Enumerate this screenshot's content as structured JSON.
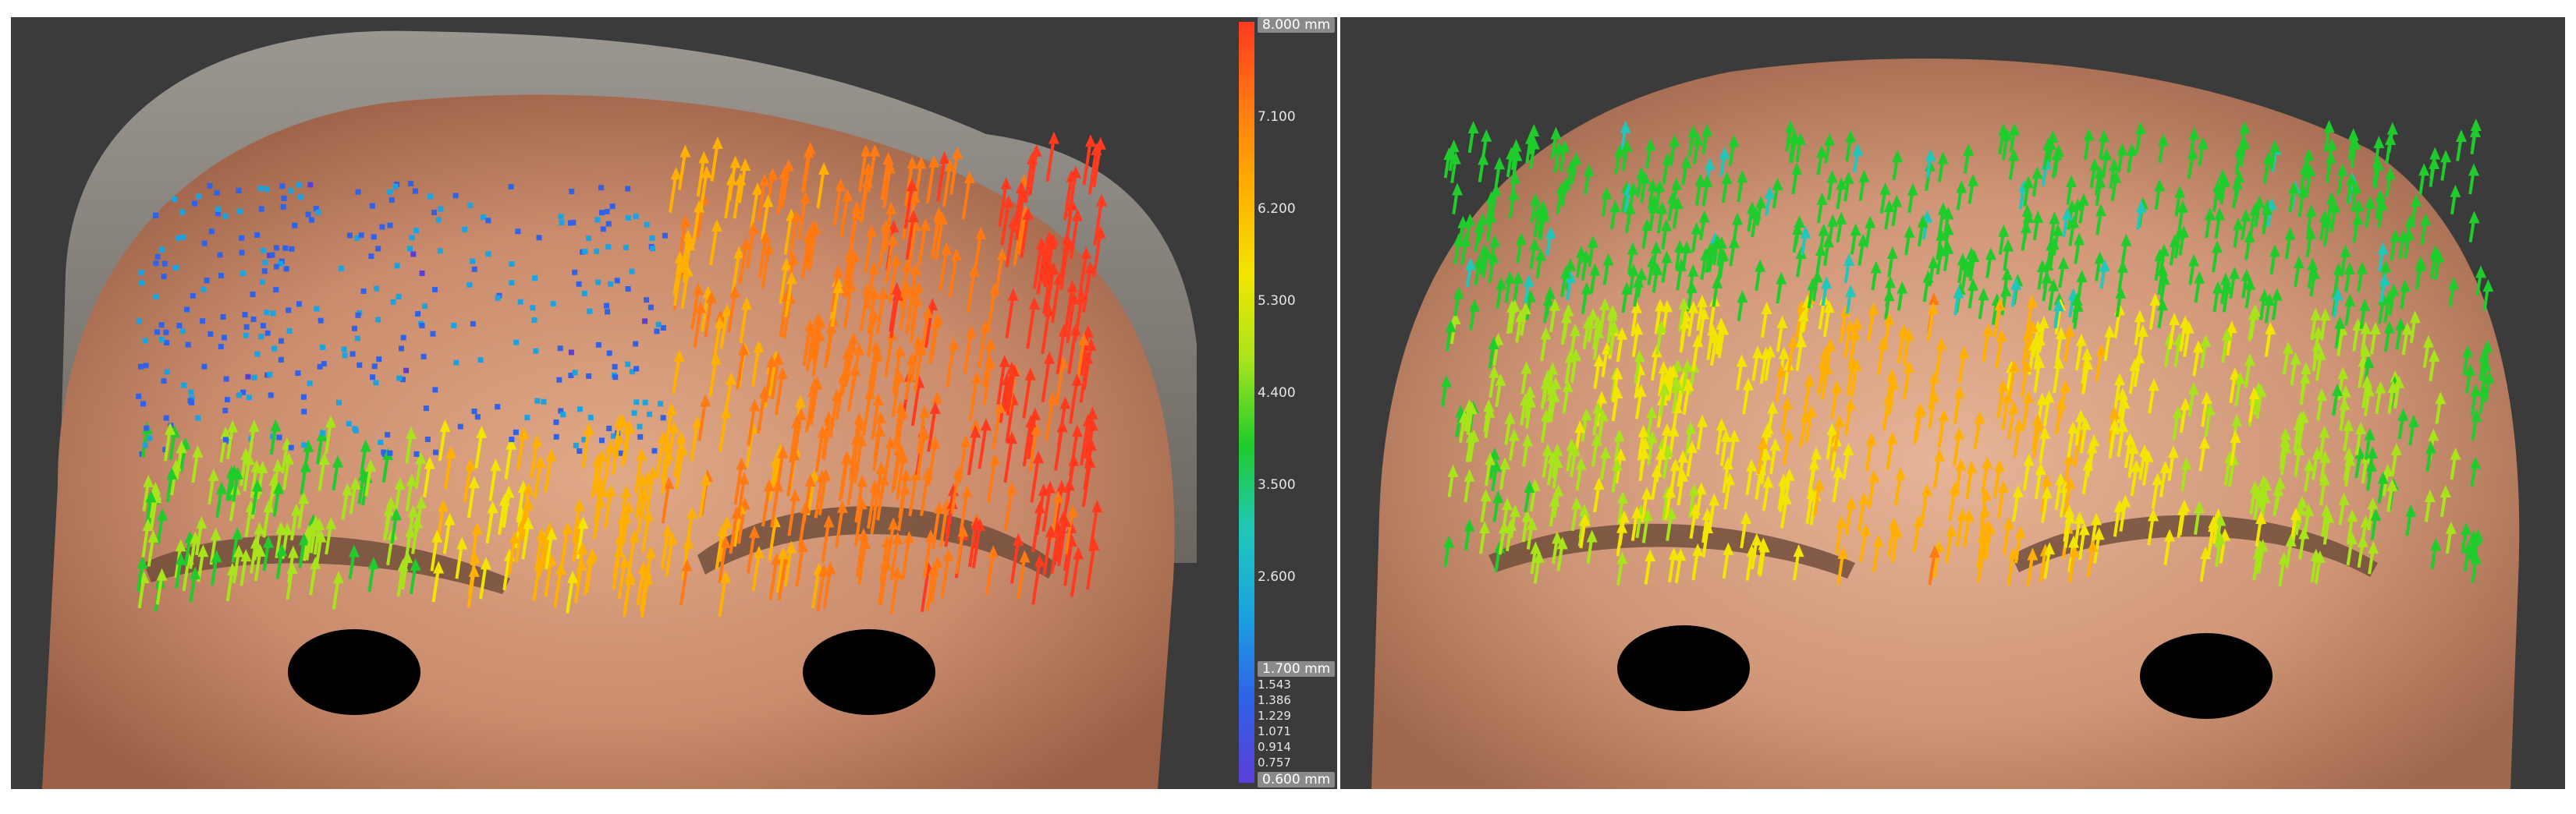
{
  "scale": {
    "max_label": "8.000 mm",
    "ticks": [
      "7.100",
      "6.200",
      "5.300",
      "4.400",
      "3.500",
      "2.600"
    ],
    "threshold_label": "1.700 mm",
    "minor_ticks": [
      "1.543",
      "1.386",
      "1.229",
      "1.071",
      "0.914",
      "0.757"
    ],
    "min_label": "0.600 mm",
    "colors": [
      "#ff3a1f",
      "#ff7a12",
      "#ffb000",
      "#f2e600",
      "#a8e41c",
      "#1fcc2b",
      "#21c7b8",
      "#1aa3e0",
      "#2f62e8",
      "#5a3fd6"
    ]
  },
  "panels": [
    {
      "name": "left-face-displacement-map",
      "eyes": 2
    },
    {
      "name": "right-face-displacement-map",
      "eyes": 2
    }
  ]
}
